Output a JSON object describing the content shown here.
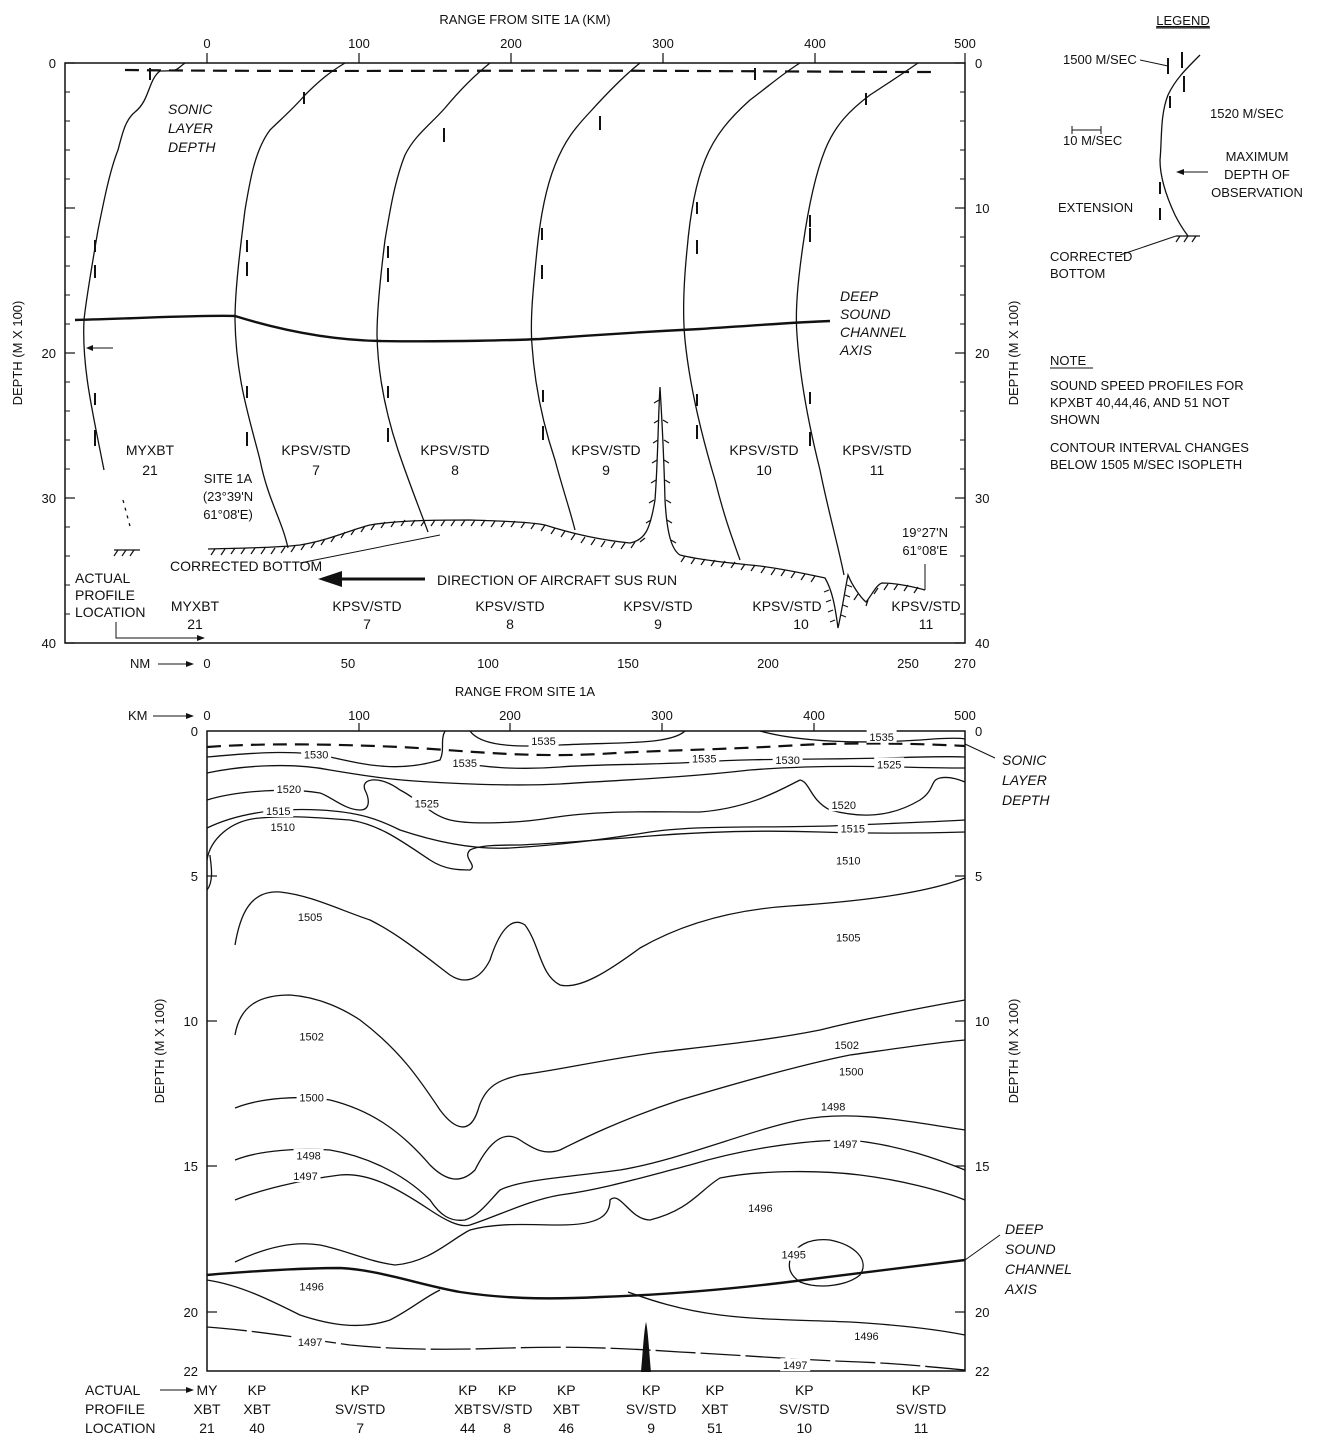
{
  "chart_data": [
    {
      "type": "line",
      "title": "RANGE FROM SITE 1A (KM)",
      "ylabel": "DEPTH (M X 100)",
      "x_km_ticks": [
        "0",
        "100",
        "200",
        "300",
        "400",
        "500"
      ],
      "x_nm_ticks": [
        "0",
        "50",
        "100",
        "150",
        "200",
        "250",
        "270"
      ],
      "nm_label": "NM",
      "bottom_axis_title": "RANGE FROM SITE 1A",
      "y_ticks": [
        "0",
        "10",
        "20",
        "30",
        "40"
      ],
      "ylim": [
        40,
        0
      ],
      "profiles": [
        {
          "id": "MYXBT 21",
          "name_lines": [
            "MYXBT",
            "21"
          ],
          "station_lines": [
            "MYXBT",
            "21"
          ]
        },
        {
          "id": "KPSV/STD 7",
          "name_lines": [
            "KPSV/STD",
            "7"
          ],
          "station_lines": [
            "KPSV/STD",
            "7"
          ]
        },
        {
          "id": "KPSV/STD 8",
          "name_lines": [
            "KPSV/STD",
            "8"
          ],
          "station_lines": [
            "KPSV/STD",
            "8"
          ]
        },
        {
          "id": "KPSV/STD 9",
          "name_lines": [
            "KPSV/STD",
            "9"
          ],
          "station_lines": [
            "KPSV/STD",
            "9"
          ]
        },
        {
          "id": "KPSV/STD 10",
          "name_lines": [
            "KPSV/STD",
            "10"
          ],
          "station_lines": [
            "KPSV/STD",
            "10"
          ]
        },
        {
          "id": "KPSV/STD 11",
          "name_lines": [
            "KPSV/STD",
            "11"
          ],
          "station_lines": [
            "KPSV/STD",
            "11"
          ]
        }
      ],
      "annotations": {
        "sonic_layer": [
          "SONIC",
          "LAYER",
          "DEPTH"
        ],
        "deep_sound_channel": [
          "DEEP",
          "SOUND",
          "CHANNEL",
          "AXIS"
        ],
        "site_1a": [
          "SITE 1A",
          "(23°39'N",
          "61°08'E)"
        ],
        "end_position": [
          "19°27'N",
          "61°08'E"
        ],
        "corrected_bottom": "CORRECTED BOTTOM",
        "direction": "DIRECTION OF AIRCRAFT SUS RUN",
        "actual_profile_location": [
          "ACTUAL",
          "PROFILE",
          "LOCATION"
        ]
      }
    },
    {
      "type": "line",
      "title": "RANGE FROM SITE 1A",
      "ylabel": "DEPTH (M X 100)",
      "km_label": "KM",
      "x_km_ticks": [
        "0",
        "100",
        "200",
        "300",
        "400",
        "500"
      ],
      "y_ticks": [
        "0",
        "5",
        "10",
        "15",
        "20",
        "22"
      ],
      "ylim": [
        22,
        0
      ],
      "isopleth_labels": [
        {
          "label": "1535",
          "x_km": 222,
          "depth": 0.35
        },
        {
          "label": "1535",
          "x_km": 445,
          "depth": 0.2
        },
        {
          "label": "1530",
          "x_km": 72,
          "depth": 0.8
        },
        {
          "label": "1535",
          "x_km": 170,
          "depth": 1.1
        },
        {
          "label": "1535",
          "x_km": 328,
          "depth": 0.95
        },
        {
          "label": "1530",
          "x_km": 383,
          "depth": 1.0
        },
        {
          "label": "1525",
          "x_km": 450,
          "depth": 1.15
        },
        {
          "label": "1520",
          "x_km": 54,
          "depth": 2.0
        },
        {
          "label": "1525",
          "x_km": 145,
          "depth": 2.5
        },
        {
          "label": "1520",
          "x_km": 420,
          "depth": 2.55
        },
        {
          "label": "1515",
          "x_km": 47,
          "depth": 2.75
        },
        {
          "label": "1515",
          "x_km": 426,
          "depth": 3.35
        },
        {
          "label": "1510",
          "x_km": 50,
          "depth": 3.3
        },
        {
          "label": "1510",
          "x_km": 423,
          "depth": 4.45
        },
        {
          "label": "1505",
          "x_km": 68,
          "depth": 6.4
        },
        {
          "label": "1505",
          "x_km": 423,
          "depth": 7.1
        },
        {
          "label": "1502",
          "x_km": 69,
          "depth": 10.5
        },
        {
          "label": "1502",
          "x_km": 422,
          "depth": 10.8
        },
        {
          "label": "1500",
          "x_km": 69,
          "depth": 12.6
        },
        {
          "label": "1500",
          "x_km": 425,
          "depth": 11.7
        },
        {
          "label": "1498",
          "x_km": 67,
          "depth": 14.6
        },
        {
          "label": "1498",
          "x_km": 413,
          "depth": 12.9
        },
        {
          "label": "1497",
          "x_km": 65,
          "depth": 15.3
        },
        {
          "label": "1497",
          "x_km": 421,
          "depth": 14.2
        },
        {
          "label": "1496",
          "x_km": 365,
          "depth": 16.4
        },
        {
          "label": "1495",
          "x_km": 387,
          "depth": 18.0
        },
        {
          "label": "1496",
          "x_km": 69,
          "depth": 19.1
        },
        {
          "label": "1496",
          "x_km": 435,
          "depth": 20.8
        },
        {
          "label": "1497",
          "x_km": 68,
          "depth": 21.0
        },
        {
          "label": "1497",
          "x_km": 388,
          "depth": 21.8
        }
      ],
      "annotations": {
        "sonic_layer": [
          "SONIC",
          "LAYER",
          "DEPTH"
        ],
        "deep_sound_channel": [
          "DEEP",
          "SOUND",
          "CHANNEL",
          "AXIS"
        ],
        "actual_profile_location": [
          "ACTUAL",
          "PROFILE",
          "LOCATION"
        ]
      },
      "stations": [
        {
          "x_km": 0,
          "lines": [
            "MY",
            "XBT",
            "21"
          ]
        },
        {
          "x_km": 33,
          "lines": [
            "KP",
            "XBT",
            "40"
          ]
        },
        {
          "x_km": 101,
          "lines": [
            "KP",
            "SV/STD",
            "7"
          ]
        },
        {
          "x_km": 172,
          "lines": [
            "KP",
            "XBT",
            "44"
          ]
        },
        {
          "x_km": 198,
          "lines": [
            "KP",
            "SV/STD",
            "8"
          ]
        },
        {
          "x_km": 237,
          "lines": [
            "KP",
            "XBT",
            "46"
          ]
        },
        {
          "x_km": 293,
          "lines": [
            "KP",
            "SV/STD",
            "9"
          ]
        },
        {
          "x_km": 335,
          "lines": [
            "KP",
            "XBT",
            "51"
          ]
        },
        {
          "x_km": 394,
          "lines": [
            "KP",
            "SV/STD",
            "10"
          ]
        },
        {
          "x_km": 471,
          "lines": [
            "KP",
            "SV/STD",
            "11"
          ]
        }
      ]
    }
  ],
  "legend": {
    "title": "LEGEND",
    "speed_1500": "1500 M/SEC",
    "speed_1520": "1520 M/SEC",
    "scale": "10 M/SEC",
    "max_depth": [
      "MAXIMUM",
      "DEPTH OF",
      "OBSERVATION"
    ],
    "extension": "EXTENSION",
    "corrected_bottom": [
      "CORRECTED",
      "BOTTOM"
    ]
  },
  "note": {
    "title": "NOTE",
    "line1": [
      "SOUND SPEED PROFILES FOR",
      "KPXBT 40,44,46, AND 51 NOT",
      "SHOWN"
    ],
    "line2": [
      "CONTOUR INTERVAL CHANGES",
      "BELOW 1505 M/SEC ISOPLETH"
    ]
  }
}
